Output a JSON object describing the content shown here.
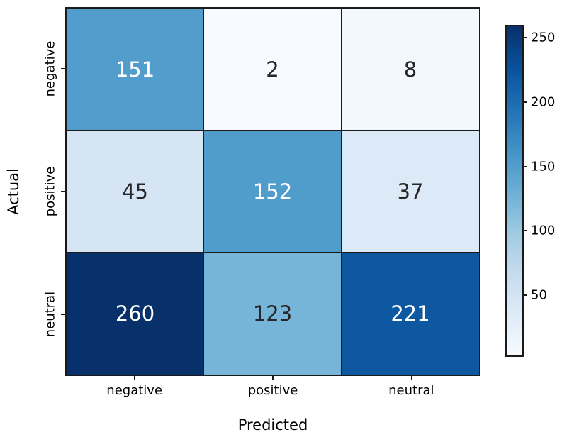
{
  "chart_data": {
    "type": "heatmap",
    "title": "",
    "xlabel": "Predicted",
    "ylabel": "Actual",
    "x_categories": [
      "negative",
      "positive",
      "neutral"
    ],
    "y_categories": [
      "negative",
      "positive",
      "neutral"
    ],
    "matrix": [
      [
        151,
        2,
        8
      ],
      [
        45,
        152,
        37
      ],
      [
        260,
        123,
        221
      ]
    ],
    "cell_colors": [
      [
        "#529dcc",
        "#f7fbff",
        "#f2f8fd"
      ],
      [
        "#d6e5f4",
        "#509ccb",
        "#dce9f6"
      ],
      [
        "#08306b",
        "#77b5d8",
        "#0d58a1"
      ]
    ],
    "cell_text_colors": [
      [
        "#ffffff",
        "#262626",
        "#262626"
      ],
      [
        "#262626",
        "#ffffff",
        "#262626"
      ],
      [
        "#ffffff",
        "#262626",
        "#ffffff"
      ]
    ],
    "colormap": "Blues",
    "colormap_stops": [
      "#f7fbff",
      "#deebf7",
      "#c6dbef",
      "#9ecae1",
      "#6baed6",
      "#4292c6",
      "#2171b5",
      "#08519c",
      "#08306b"
    ],
    "vmin": 2,
    "vmax": 260,
    "colorbar_ticks": [
      50,
      100,
      150,
      200,
      250
    ],
    "grid_line_color": "#1a1a1a",
    "legend_position": "right-colorbar"
  }
}
